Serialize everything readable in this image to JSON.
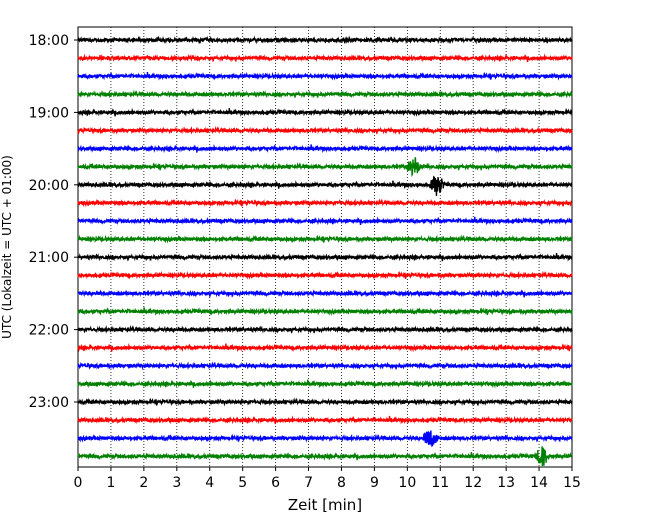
{
  "chart_data": {
    "type": "line",
    "subtype": "helicorder-seismogram",
    "xlabel": "Zeit  [min]",
    "ylabel": "UTC (Lokalzeit = UTC + 01:00)",
    "xlim": [
      0,
      15
    ],
    "x_ticks": [
      "0",
      "1",
      "2",
      "3",
      "4",
      "5",
      "6",
      "7",
      "8",
      "9",
      "10",
      "11",
      "12",
      "13",
      "14",
      "15"
    ],
    "y_tick_labels": [
      "18:00",
      "19:00",
      "20:00",
      "21:00",
      "22:00",
      "23:00"
    ],
    "grid": {
      "vertical_dotted": true
    },
    "trace_colors": [
      "#000000",
      "#ff0000",
      "#0000ff",
      "#008000"
    ],
    "traces_per_hour": 4,
    "trace_start_times": [
      "18:00",
      "18:15",
      "18:30",
      "18:45",
      "19:00",
      "19:15",
      "19:30",
      "19:45",
      "20:00",
      "20:15",
      "20:30",
      "20:45",
      "21:00",
      "21:15",
      "21:30",
      "21:45",
      "22:00",
      "22:15",
      "22:30",
      "22:45",
      "23:00",
      "23:15",
      "23:30",
      "23:45"
    ],
    "notable_events": [
      {
        "trace": "23:30",
        "minute": 10.7,
        "color": "#0000ff"
      },
      {
        "trace": "23:45",
        "minute": 14.1,
        "color": "#008000"
      },
      {
        "trace": "19:45",
        "minute": 10.2,
        "color": "#008000"
      },
      {
        "trace": "20:00",
        "minute": 10.9,
        "color": "#000000"
      }
    ]
  }
}
